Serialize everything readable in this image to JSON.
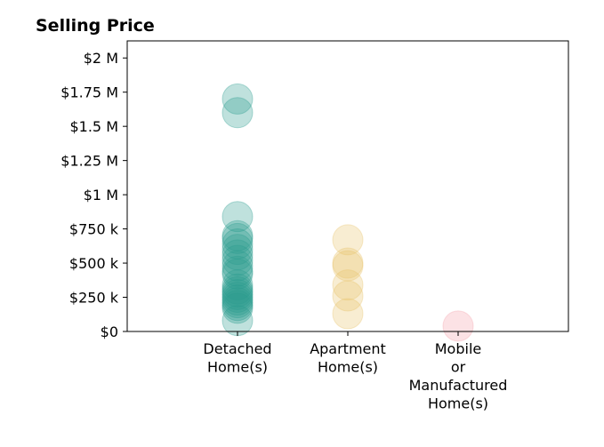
{
  "chart_data": {
    "type": "scatter",
    "title": "Selling Price",
    "xlabel": "",
    "ylabel": "",
    "categories": [
      [
        "Detached",
        "Home(s)"
      ],
      [
        "Apartment",
        "Home(s)"
      ],
      [
        "Mobile",
        "or",
        "Manufactured",
        "Home(s)"
      ]
    ],
    "ylim": [
      0,
      2125000
    ],
    "y_ticks": [
      0,
      250000,
      500000,
      750000,
      1000000,
      1250000,
      1500000,
      1750000,
      2000000
    ],
    "y_tick_labels": [
      "$0",
      "$250 k",
      "$500 k",
      "$750 k",
      "$1 M",
      "$1.25 M",
      "$1.5 M",
      "$1.75 M",
      "$2 M"
    ],
    "grid": false,
    "legend": "none",
    "colors": [
      "#2a9d8f",
      "#e9c46a",
      "#f4a0a8"
    ],
    "series": [
      {
        "category_index": 0,
        "values": [
          1700000,
          1600000,
          840000,
          700000,
          680000,
          640000,
          600000,
          560000,
          520000,
          480000,
          440000,
          420000,
          340000,
          310000,
          290000,
          270000,
          250000,
          230000,
          210000,
          190000,
          170000,
          80000
        ]
      },
      {
        "category_index": 1,
        "values": [
          670000,
          500000,
          480000,
          340000,
          260000,
          130000
        ]
      },
      {
        "category_index": 2,
        "values": [
          40000
        ]
      }
    ]
  }
}
